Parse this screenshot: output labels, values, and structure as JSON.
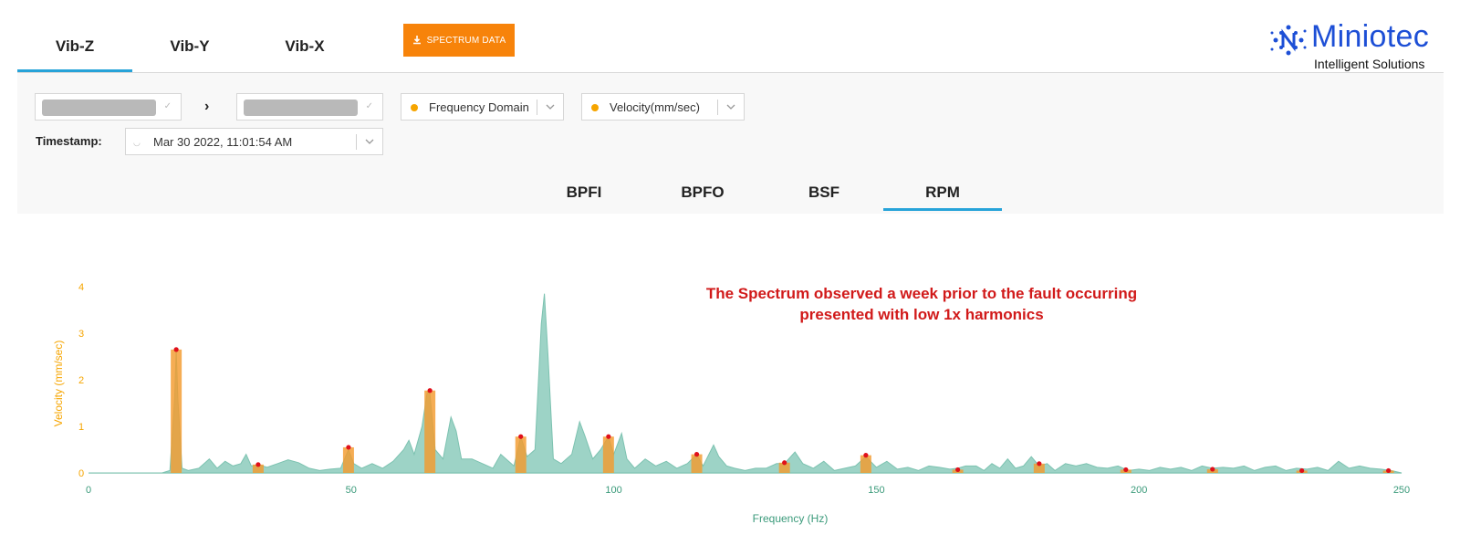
{
  "tabs": [
    {
      "label": "Vib-Z",
      "active": true
    },
    {
      "label": "Vib-Y",
      "active": false
    },
    {
      "label": "Vib-X",
      "active": false
    }
  ],
  "download_button": {
    "label": "SPECTRUM DATA",
    "icon": "download-icon",
    "color": "#f7830a"
  },
  "logo": {
    "name": "Miniotec",
    "tagline": "Intelligent Solutions",
    "color": "#1d4fd6"
  },
  "filters": {
    "breadcrumb_separator": "›",
    "domain_select": {
      "value": "Frequency Domain",
      "dot_color": "#f6a500"
    },
    "unit_select": {
      "value": "Velocity(mm/sec)",
      "dot_color": "#f6a500"
    },
    "timestamp": {
      "label": "Timestamp:",
      "value": "Mar 30 2022, 11:01:54 AM"
    }
  },
  "fault_tabs": [
    {
      "label": "BPFI",
      "active": false
    },
    {
      "label": "BPFO",
      "active": false
    },
    {
      "label": "BSF",
      "active": false
    },
    {
      "label": "RPM",
      "active": true
    }
  ],
  "annotation": {
    "line1": "The Spectrum observed a week prior to the fault occurring",
    "line2": "presented with low 1x harmonics",
    "color": "#d11a1a"
  },
  "chart_data": {
    "type": "area",
    "xlabel": "Frequency (Hz)",
    "ylabel": "Velocity (mm/sec)",
    "xlim": [
      0,
      250
    ],
    "ylim": [
      0,
      4
    ],
    "x_ticks": [
      0,
      50,
      100,
      150,
      200,
      250
    ],
    "y_ticks": [
      0,
      1,
      2,
      3,
      4
    ],
    "spectrum_color": "#9dd3c6",
    "marker_bar_color": "#f39b2e",
    "marker_dot_color": "#e0101a",
    "spectrum": [
      [
        0,
        0
      ],
      [
        10,
        0
      ],
      [
        14,
        0
      ],
      [
        15.5,
        0.05
      ],
      [
        16.4,
        1.6
      ],
      [
        16.7,
        2.65
      ],
      [
        17,
        1.6
      ],
      [
        17.8,
        0.1
      ],
      [
        19,
        0.05
      ],
      [
        21,
        0.1
      ],
      [
        23,
        0.3
      ],
      [
        24.5,
        0.1
      ],
      [
        26,
        0.25
      ],
      [
        27.5,
        0.15
      ],
      [
        29,
        0.2
      ],
      [
        30,
        0.4
      ],
      [
        31,
        0.15
      ],
      [
        32.3,
        0.18
      ],
      [
        34,
        0.12
      ],
      [
        36,
        0.2
      ],
      [
        38,
        0.28
      ],
      [
        40,
        0.22
      ],
      [
        42,
        0.1
      ],
      [
        44,
        0.05
      ],
      [
        46,
        0.08
      ],
      [
        48,
        0.1
      ],
      [
        49.5,
        0.5
      ],
      [
        50.5,
        0.2
      ],
      [
        52,
        0.1
      ],
      [
        54,
        0.2
      ],
      [
        56,
        0.1
      ],
      [
        58,
        0.25
      ],
      [
        60,
        0.5
      ],
      [
        61,
        0.7
      ],
      [
        62,
        0.4
      ],
      [
        63.5,
        1.0
      ],
      [
        64.5,
        1.75
      ],
      [
        65,
        1.7
      ],
      [
        66,
        0.5
      ],
      [
        67.5,
        0.3
      ],
      [
        69,
        1.2
      ],
      [
        70,
        0.9
      ],
      [
        71,
        0.3
      ],
      [
        73,
        0.3
      ],
      [
        75,
        0.2
      ],
      [
        77,
        0.1
      ],
      [
        78.5,
        0.4
      ],
      [
        79.5,
        0.3
      ],
      [
        81,
        0.15
      ],
      [
        82.3,
        0.78
      ],
      [
        83.5,
        0.35
      ],
      [
        85,
        0.5
      ],
      [
        86.2,
        3.2
      ],
      [
        86.8,
        3.85
      ],
      [
        87.5,
        2.5
      ],
      [
        88.5,
        0.3
      ],
      [
        90,
        0.2
      ],
      [
        92,
        0.4
      ],
      [
        93.5,
        1.1
      ],
      [
        94.5,
        0.8
      ],
      [
        96,
        0.3
      ],
      [
        97.5,
        0.5
      ],
      [
        99,
        0.78
      ],
      [
        100,
        0.4
      ],
      [
        101.5,
        0.85
      ],
      [
        102.5,
        0.3
      ],
      [
        104,
        0.1
      ],
      [
        106,
        0.3
      ],
      [
        108,
        0.15
      ],
      [
        110,
        0.25
      ],
      [
        112,
        0.1
      ],
      [
        114,
        0.2
      ],
      [
        115.8,
        0.4
      ],
      [
        117,
        0.15
      ],
      [
        119,
        0.6
      ],
      [
        120,
        0.35
      ],
      [
        121.5,
        0.15
      ],
      [
        123,
        0.1
      ],
      [
        125,
        0.05
      ],
      [
        127,
        0.1
      ],
      [
        129,
        0.1
      ],
      [
        131,
        0.2
      ],
      [
        132.5,
        0.2
      ],
      [
        134.5,
        0.45
      ],
      [
        136,
        0.2
      ],
      [
        138,
        0.1
      ],
      [
        140,
        0.25
      ],
      [
        142,
        0.05
      ],
      [
        144,
        0.1
      ],
      [
        146,
        0.15
      ],
      [
        148,
        0.35
      ],
      [
        150,
        0.12
      ],
      [
        152,
        0.25
      ],
      [
        154,
        0.08
      ],
      [
        156,
        0.12
      ],
      [
        158,
        0.05
      ],
      [
        160,
        0.15
      ],
      [
        162,
        0.12
      ],
      [
        164,
        0.08
      ],
      [
        165.5,
        0.1
      ],
      [
        167,
        0.15
      ],
      [
        169,
        0.15
      ],
      [
        170.5,
        0.05
      ],
      [
        172,
        0.2
      ],
      [
        173.5,
        0.1
      ],
      [
        175,
        0.3
      ],
      [
        176.5,
        0.1
      ],
      [
        178,
        0.15
      ],
      [
        179.5,
        0.35
      ],
      [
        181,
        0.15
      ],
      [
        182.5,
        0.2
      ],
      [
        184,
        0.05
      ],
      [
        186,
        0.2
      ],
      [
        188,
        0.15
      ],
      [
        190,
        0.2
      ],
      [
        192,
        0.12
      ],
      [
        194,
        0.1
      ],
      [
        196,
        0.15
      ],
      [
        198,
        0.05
      ],
      [
        200,
        0.08
      ],
      [
        202,
        0.05
      ],
      [
        204,
        0.12
      ],
      [
        206,
        0.08
      ],
      [
        208,
        0.12
      ],
      [
        210,
        0.05
      ],
      [
        212,
        0.15
      ],
      [
        214,
        0.1
      ],
      [
        216,
        0.12
      ],
      [
        218,
        0.1
      ],
      [
        220,
        0.15
      ],
      [
        222,
        0.05
      ],
      [
        224,
        0.12
      ],
      [
        226,
        0.15
      ],
      [
        228,
        0.05
      ],
      [
        230,
        0.1
      ],
      [
        232,
        0.08
      ],
      [
        234,
        0.12
      ],
      [
        236,
        0.05
      ],
      [
        238,
        0.25
      ],
      [
        240,
        0.1
      ],
      [
        242,
        0.15
      ],
      [
        244,
        0.1
      ],
      [
        246,
        0.08
      ],
      [
        248,
        0.05
      ],
      [
        250,
        0
      ]
    ],
    "harmonic_markers": [
      {
        "x": 16.7,
        "y": 2.65
      },
      {
        "x": 32.3,
        "y": 0.18
      },
      {
        "x": 49.5,
        "y": 0.55
      },
      {
        "x": 65.0,
        "y": 1.77
      },
      {
        "x": 82.3,
        "y": 0.78
      },
      {
        "x": 99.0,
        "y": 0.78
      },
      {
        "x": 115.8,
        "y": 0.4
      },
      {
        "x": 132.5,
        "y": 0.22
      },
      {
        "x": 148.0,
        "y": 0.38
      },
      {
        "x": 165.5,
        "y": 0.07
      },
      {
        "x": 181.0,
        "y": 0.2
      },
      {
        "x": 197.5,
        "y": 0.07
      },
      {
        "x": 214.0,
        "y": 0.08
      },
      {
        "x": 231.0,
        "y": 0.05
      },
      {
        "x": 247.5,
        "y": 0.05
      }
    ]
  }
}
